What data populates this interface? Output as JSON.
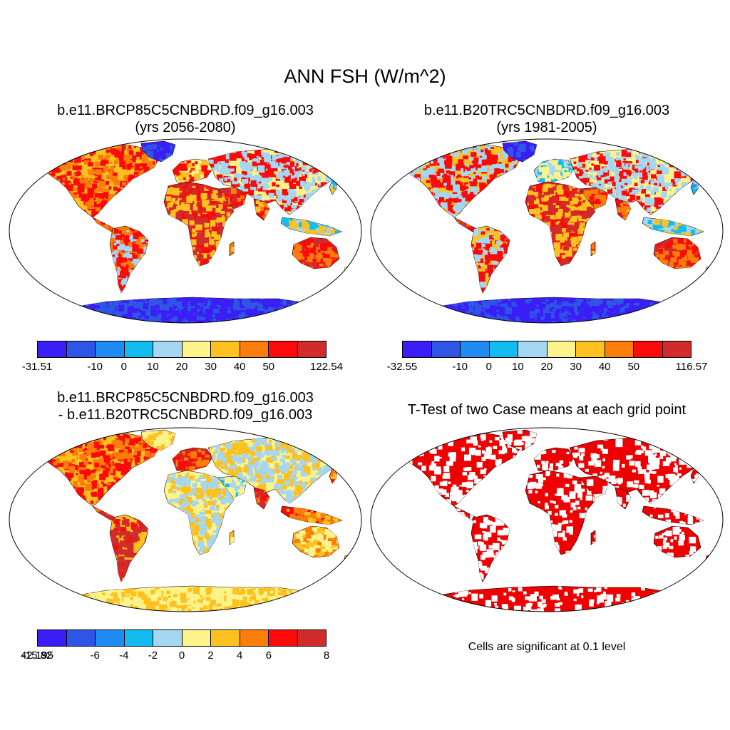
{
  "title": "ANN FSH (W/m^2)",
  "panels": [
    {
      "id": "case",
      "title_line1": "b.e11.BRCP85C5CNBDRD.f09_g16.003",
      "title_line2": "(yrs 2056-2080)",
      "colorbar": {
        "colors": [
          "#3a1ef5",
          "#2e55e6",
          "#1e8cf2",
          "#12bcf0",
          "#a5d6f2",
          "#fdf38b",
          "#fdc21f",
          "#fc7d0a",
          "#fa0a0a",
          "#d22b2b"
        ],
        "tick_labels": [
          "-31.51",
          "-10",
          "0",
          "10",
          "20",
          "30",
          "40",
          "50",
          "122.54"
        ]
      }
    },
    {
      "id": "control",
      "title_line1": "b.e11.B20TRC5CNBDRD.f09_g16.003",
      "title_line2": "(yrs 1981-2005)",
      "colorbar": {
        "colors": [
          "#3a1ef5",
          "#2e55e6",
          "#1e8cf2",
          "#12bcf0",
          "#a5d6f2",
          "#fdf38b",
          "#fdc21f",
          "#fc7d0a",
          "#fa0a0a",
          "#d22b2b"
        ],
        "tick_labels": [
          "-32.55",
          "-10",
          "0",
          "10",
          "20",
          "30",
          "40",
          "50",
          "116.57"
        ]
      }
    },
    {
      "id": "difference",
      "title_line1": "b.e11.BRCP85C5CNBDRD.f09_g16.003",
      "title_line2": "- b.e11.B20TRC5CNBDRD.f09_g16.003",
      "colorbar": {
        "colors": [
          "#3a1ef5",
          "#2e55e6",
          "#1e8cf2",
          "#12bcf0",
          "#a5d6f2",
          "#fdf38b",
          "#fdc21f",
          "#fc7d0a",
          "#fa0a0a",
          "#d22b2b"
        ],
        "tick_labels": [
          "-15.82",
          "-6",
          "-4",
          "-2",
          "0",
          "2",
          "4",
          "6",
          "8",
          "42.195"
        ]
      }
    },
    {
      "id": "ttest",
      "title_line1": "T-Test of two Case means at each grid point",
      "note": "Cells are significant at 0.1 level",
      "fill_color": "#ee0000"
    }
  ]
}
